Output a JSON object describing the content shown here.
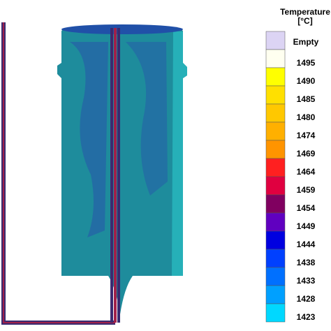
{
  "legend": {
    "title": "Temperature",
    "unit": "[°C]",
    "entries": [
      {
        "label": "Empty",
        "color": "#dcd4f4"
      },
      {
        "label": "1495",
        "color": "#fffff0"
      },
      {
        "label": "1490",
        "color": "#ffff00"
      },
      {
        "label": "1485",
        "color": "#ffe000"
      },
      {
        "label": "1480",
        "color": "#ffc800"
      },
      {
        "label": "1474",
        "color": "#ffb000"
      },
      {
        "label": "1469",
        "color": "#ff9400"
      },
      {
        "label": "1464",
        "color": "#ff2020"
      },
      {
        "label": "1459",
        "color": "#e00040"
      },
      {
        "label": "1454",
        "color": "#800060"
      },
      {
        "label": "1449",
        "color": "#6000c0"
      },
      {
        "label": "1444",
        "color": "#0000e0"
      },
      {
        "label": "1438",
        "color": "#0040ff"
      },
      {
        "label": "1433",
        "color": "#0070ff"
      },
      {
        "label": "1428",
        "color": "#00a0ff"
      },
      {
        "label": "1423",
        "color": "#00d8ff"
      }
    ]
  }
}
